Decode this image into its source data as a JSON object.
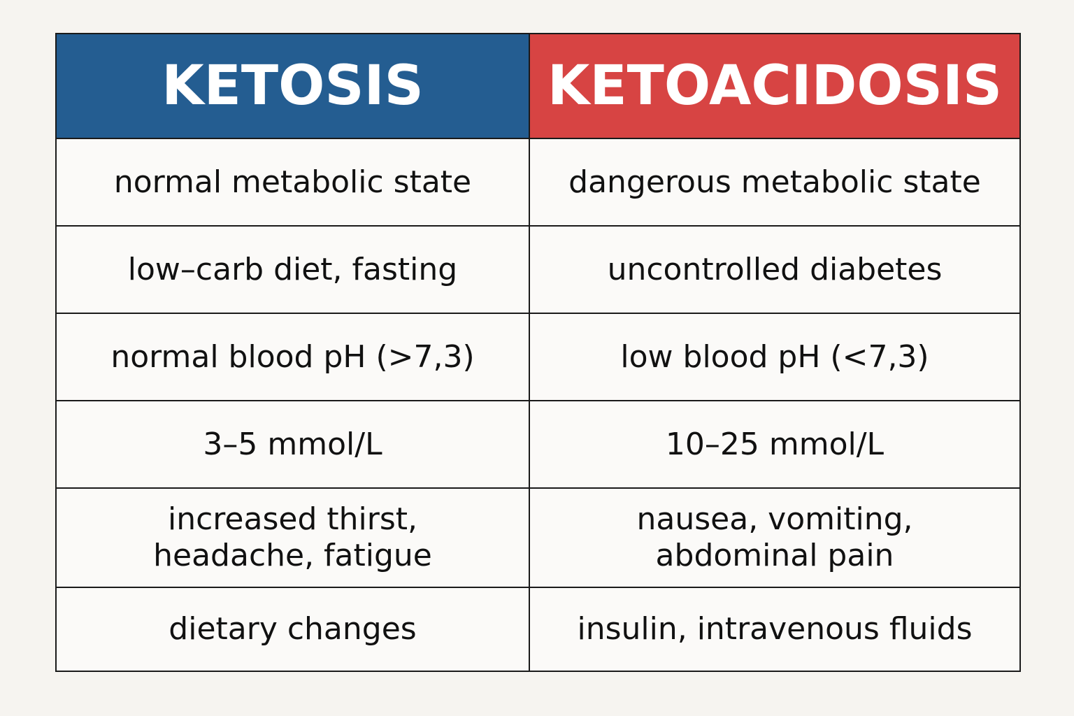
{
  "headers": {
    "ketosis": "KETOSIS",
    "ketoacidosis": "KETOACIDOSIS"
  },
  "rows": [
    {
      "ketosis": "normal metabolic state",
      "ketoacidosis": "dangerous metabolic state"
    },
    {
      "ketosis": "low–carb diet, fasting",
      "ketoacidosis": "uncontrolled diabetes"
    },
    {
      "ketosis": "normal blood pH (>7,3)",
      "ketoacidosis": "low blood pH (<7,3)"
    },
    {
      "ketosis": "3–5 mmol/L",
      "ketoacidosis": "10–25 mmol/L"
    },
    {
      "ketosis": [
        "increased thirst,",
        "headache, fatigue"
      ],
      "ketoacidosis": [
        "nausea, vomiting,",
        "abdominal pain"
      ]
    },
    {
      "ketosis": "dietary changes",
      "ketoacidosis": "insulin, intravenous fluids"
    }
  ],
  "colors": {
    "ketosis_header": "#245d91",
    "ketoacidosis_header": "#d74443",
    "background": "#f6f4f0",
    "border": "#1a1a1a"
  }
}
